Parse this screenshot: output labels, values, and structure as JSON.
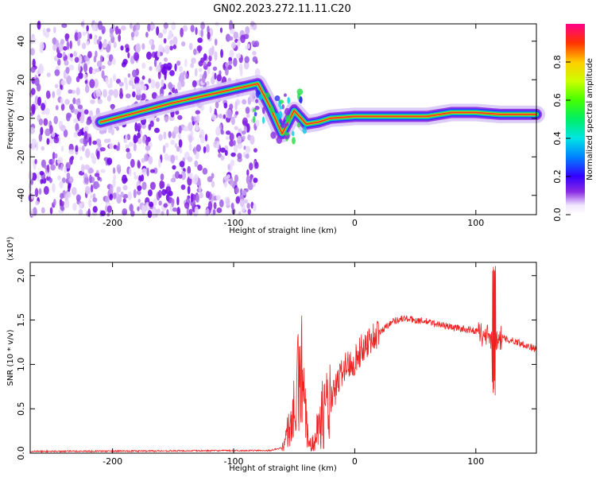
{
  "title": "GN02.2023.272.11.11.C20",
  "chart_data": [
    {
      "type": "heatmap",
      "xlabel": "Height of straight line (km)",
      "ylabel": "Frequency (Hz)",
      "xlim": [
        -268,
        150
      ],
      "ylim": [
        -50,
        49
      ],
      "x_ticks": [
        -200,
        -100,
        0,
        100
      ],
      "y_ticks": [
        -40,
        -20,
        0,
        20,
        40
      ],
      "colorbar": {
        "label": "Normalized spectral amplitude",
        "range": [
          0,
          1
        ],
        "ticks": [
          "0.0",
          "0.2",
          "0.4",
          "0.6",
          "0.8"
        ],
        "colormap": "rainbow"
      },
      "noise_region_x": [
        -268,
        -80
      ],
      "ridge": [
        {
          "x": -210,
          "f": -2
        },
        {
          "x": -150,
          "f": 8
        },
        {
          "x": -80,
          "f": 18
        },
        {
          "x": -70,
          "f": 6
        },
        {
          "x": -60,
          "f": -8
        },
        {
          "x": -50,
          "f": 4
        },
        {
          "x": -40,
          "f": -3
        },
        {
          "x": -30,
          "f": -2
        },
        {
          "x": -20,
          "f": 0
        },
        {
          "x": 0,
          "f": 1
        },
        {
          "x": 20,
          "f": 1
        },
        {
          "x": 60,
          "f": 1
        },
        {
          "x": 80,
          "f": 3
        },
        {
          "x": 100,
          "f": 3
        },
        {
          "x": 120,
          "f": 2
        },
        {
          "x": 150,
          "f": 2
        }
      ]
    },
    {
      "type": "line",
      "xlabel": "Height of straight line (km)",
      "ylabel": "SNR (10 * v/v)",
      "y_multiplier": "(x10⁴)",
      "xlim": [
        -268,
        150
      ],
      "ylim": [
        0,
        2.15
      ],
      "x_ticks": [
        -200,
        -100,
        0,
        100
      ],
      "y_ticks": [
        "0.0",
        "0.5",
        "1.0",
        "1.5",
        "2.0"
      ],
      "series_color": "#ee2222",
      "envelope": [
        {
          "x": -268,
          "y": 0.02
        },
        {
          "x": -70,
          "y": 0.03
        },
        {
          "x": -60,
          "y": 0.06
        },
        {
          "x": -55,
          "y": 0.25
        },
        {
          "x": -50,
          "y": 0.45
        },
        {
          "x": -47,
          "y": 0.7
        },
        {
          "x": -45,
          "y": 1.05
        },
        {
          "x": -42,
          "y": 0.55
        },
        {
          "x": -38,
          "y": 0.08
        },
        {
          "x": -30,
          "y": 0.3
        },
        {
          "x": -25,
          "y": 0.5
        },
        {
          "x": -20,
          "y": 0.55
        },
        {
          "x": -10,
          "y": 0.95
        },
        {
          "x": 0,
          "y": 1.05
        },
        {
          "x": 10,
          "y": 1.25
        },
        {
          "x": 20,
          "y": 1.35
        },
        {
          "x": 30,
          "y": 1.48
        },
        {
          "x": 40,
          "y": 1.52
        },
        {
          "x": 60,
          "y": 1.48
        },
        {
          "x": 80,
          "y": 1.42
        },
        {
          "x": 100,
          "y": 1.38
        },
        {
          "x": 108,
          "y": 1.33
        },
        {
          "x": 112,
          "y": 1.3
        },
        {
          "x": 120,
          "y": 1.3
        },
        {
          "x": 135,
          "y": 1.25
        },
        {
          "x": 150,
          "y": 1.17
        }
      ],
      "spike": {
        "x": 115,
        "y_max": 2.12,
        "y_min": 0.65
      }
    }
  ]
}
